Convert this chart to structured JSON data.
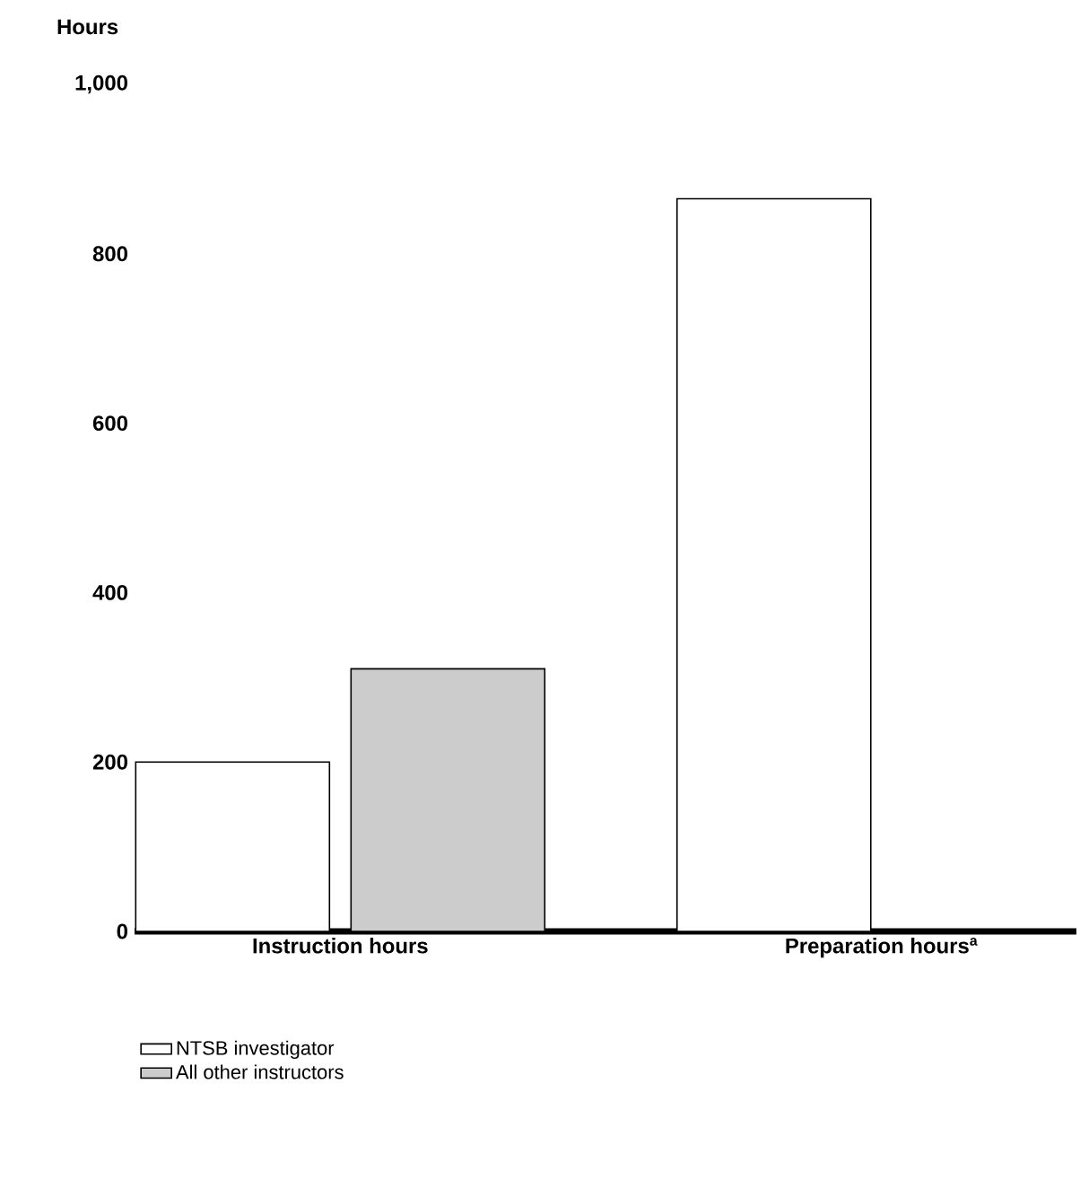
{
  "chart_data": {
    "type": "bar",
    "ylabel": "Hours",
    "categories": [
      "Instruction hours",
      "Preparation hours$^{a}$"
    ],
    "series": [
      {
        "name": "NTSB investigator",
        "color": "#ffffff",
        "values": [
          200,
          865
        ]
      },
      {
        "name": "All other instructors",
        "color": "#cccccc",
        "values": [
          310,
          null
        ]
      }
    ],
    "ylim": [
      0,
      1000
    ],
    "yticks": [
      0,
      200,
      400,
      600,
      800,
      {
        "value": 1000,
        "label": "1,000"
      }
    ],
    "legend": "bottom"
  }
}
